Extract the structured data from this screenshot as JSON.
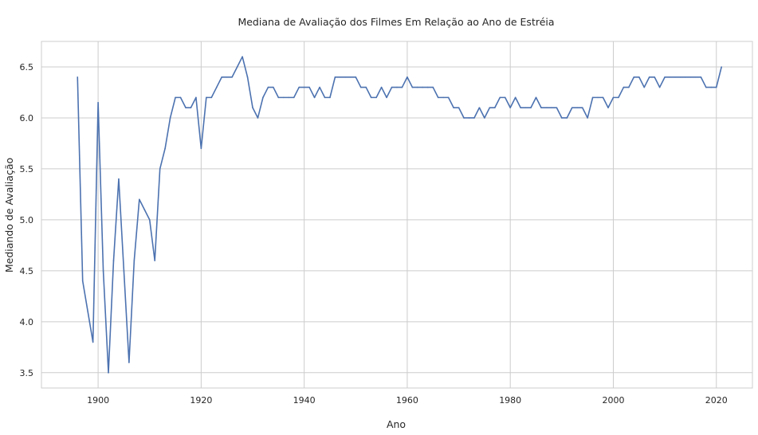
{
  "chart_data": {
    "type": "line",
    "title": "Mediana de Avaliação dos Filmes Em Relação ao Ano de Estréia",
    "xlabel": "Ano",
    "ylabel": "Mediando de Avaliação",
    "xlim": [
      1889,
      2027
    ],
    "ylim": [
      3.35,
      6.75
    ],
    "x_ticks": [
      1900,
      1920,
      1940,
      1960,
      1980,
      2000,
      2020
    ],
    "y_ticks": [
      3.5,
      4.0,
      4.5,
      5.0,
      5.5,
      6.0,
      6.5
    ],
    "x_tick_labels": [
      "1900",
      "1920",
      "1940",
      "1960",
      "1980",
      "2000",
      "2020"
    ],
    "y_tick_labels": [
      "3.5",
      "4.0",
      "4.5",
      "5.0",
      "5.5",
      "6.0",
      "6.5"
    ],
    "grid": true,
    "line_color": "#4c72b0",
    "grid_color": "#cccccc",
    "series": [
      {
        "x": [
          1896,
          1897,
          1898,
          1899,
          1900,
          1901,
          1902,
          1903,
          1904,
          1905,
          1906,
          1907,
          1908,
          1909,
          1910,
          1911,
          1912,
          1913,
          1914,
          1915,
          1916,
          1917,
          1918,
          1919,
          1920,
          1921,
          1922,
          1923,
          1924,
          1925,
          1926,
          1927,
          1928,
          1929,
          1930,
          1931,
          1932,
          1933,
          1934,
          1935,
          1936,
          1937,
          1938,
          1939,
          1940,
          1941,
          1942,
          1943,
          1944,
          1945,
          1946,
          1947,
          1948,
          1949,
          1950,
          1951,
          1952,
          1953,
          1954,
          1955,
          1956,
          1957,
          1958,
          1959,
          1960,
          1961,
          1962,
          1963,
          1964,
          1965,
          1966,
          1967,
          1968,
          1969,
          1970,
          1971,
          1972,
          1973,
          1974,
          1975,
          1976,
          1977,
          1978,
          1979,
          1980,
          1981,
          1982,
          1983,
          1984,
          1985,
          1986,
          1987,
          1988,
          1989,
          1990,
          1991,
          1992,
          1993,
          1994,
          1995,
          1996,
          1997,
          1998,
          1999,
          2000,
          2001,
          2002,
          2003,
          2004,
          2005,
          2006,
          2007,
          2008,
          2009,
          2010,
          2011,
          2012,
          2013,
          2014,
          2015,
          2016,
          2017,
          2018,
          2019,
          2020,
          2021
        ],
        "y": [
          6.4,
          4.4,
          4.1,
          3.8,
          6.15,
          4.5,
          3.5,
          4.6,
          5.4,
          4.5,
          3.6,
          4.6,
          5.2,
          5.1,
          5.0,
          4.6,
          5.5,
          5.7,
          6.0,
          6.2,
          6.2,
          6.1,
          6.1,
          6.2,
          5.7,
          6.2,
          6.2,
          6.3,
          6.4,
          6.4,
          6.4,
          6.5,
          6.6,
          6.4,
          6.1,
          6.0,
          6.2,
          6.3,
          6.3,
          6.2,
          6.2,
          6.2,
          6.2,
          6.3,
          6.3,
          6.3,
          6.2,
          6.3,
          6.2,
          6.2,
          6.4,
          6.4,
          6.4,
          6.4,
          6.4,
          6.3,
          6.3,
          6.2,
          6.2,
          6.3,
          6.2,
          6.3,
          6.3,
          6.3,
          6.4,
          6.3,
          6.3,
          6.3,
          6.3,
          6.3,
          6.2,
          6.2,
          6.2,
          6.1,
          6.1,
          6.0,
          6.0,
          6.0,
          6.1,
          6.0,
          6.1,
          6.1,
          6.2,
          6.2,
          6.1,
          6.2,
          6.1,
          6.1,
          6.1,
          6.2,
          6.1,
          6.1,
          6.1,
          6.1,
          6.0,
          6.0,
          6.1,
          6.1,
          6.1,
          6.0,
          6.2,
          6.2,
          6.2,
          6.1,
          6.2,
          6.2,
          6.3,
          6.3,
          6.4,
          6.4,
          6.3,
          6.4,
          6.4,
          6.3,
          6.4,
          6.4,
          6.4,
          6.4,
          6.4,
          6.4,
          6.4,
          6.4,
          6.3,
          6.3,
          6.3,
          6.5
        ]
      }
    ]
  }
}
